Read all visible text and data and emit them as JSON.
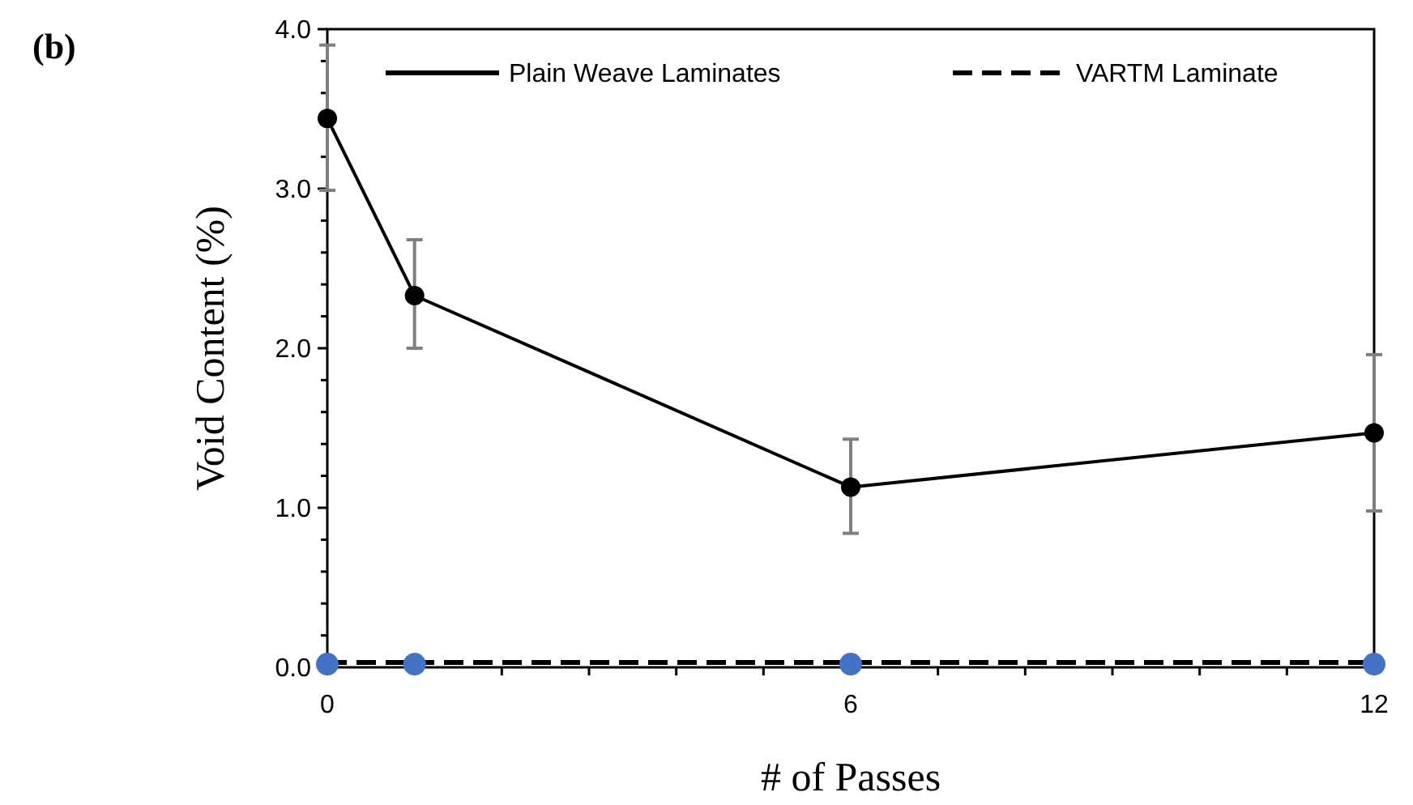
{
  "chart_data": {
    "type": "line",
    "xlabel": "# of Passes",
    "ylabel": "Void Content (%)",
    "annotations": [
      "(b)"
    ],
    "xlim": [
      0,
      12
    ],
    "ylim": [
      0,
      4
    ],
    "xticks": [
      0,
      {
        "value": 1,
        "label": null
      },
      {
        "value": 2,
        "label": null
      },
      {
        "value": 3,
        "label": null
      },
      {
        "value": 4,
        "label": null
      },
      {
        "value": 5,
        "label": null
      },
      6,
      {
        "value": 7,
        "label": null
      },
      {
        "value": 8,
        "label": null
      },
      {
        "value": 9,
        "label": null
      },
      {
        "value": 10,
        "label": null
      },
      {
        "value": 11,
        "label": null
      },
      12
    ],
    "yticks": [
      {
        "value": 0,
        "label": "0.0"
      },
      {
        "value": 0.2,
        "label": null
      },
      {
        "value": 0.4,
        "label": null
      },
      {
        "value": 0.6,
        "label": null
      },
      {
        "value": 0.8,
        "label": null
      },
      {
        "value": 1,
        "label": "1.0"
      },
      {
        "value": 1.2,
        "label": null
      },
      {
        "value": 1.4,
        "label": null
      },
      {
        "value": 1.6,
        "label": null
      },
      {
        "value": 1.8,
        "label": null
      },
      {
        "value": 2,
        "label": "2.0"
      },
      {
        "value": 2.2,
        "label": null
      },
      {
        "value": 2.4,
        "label": null
      },
      {
        "value": 2.6,
        "label": null
      },
      {
        "value": 2.8,
        "label": null
      },
      {
        "value": 3,
        "label": "3.0"
      },
      {
        "value": 3.2,
        "label": null
      },
      {
        "value": 3.4,
        "label": null
      },
      {
        "value": 3.6,
        "label": null
      },
      {
        "value": 3.8,
        "label": null
      },
      {
        "value": 4,
        "label": "4.0"
      }
    ],
    "grid": false,
    "legend": "top",
    "series": [
      {
        "name": "Plain Weave Laminates",
        "color": "#000000",
        "x": [
          0,
          1,
          6,
          12
        ],
        "values": [
          3.44,
          2.33,
          1.13,
          1.47
        ],
        "errors": [
          [
            2.99,
            3.9
          ],
          [
            2.0,
            2.68
          ],
          [
            0.84,
            1.43
          ],
          [
            0.98,
            1.96
          ]
        ],
        "marker": "circle",
        "line_style": "solid"
      },
      {
        "name": "VARTM Laminate",
        "color": "#000000",
        "x": [
          0,
          12
        ],
        "values": [
          0.03,
          0.03
        ],
        "marker": "none",
        "line_style": "dashed"
      },
      {
        "type": "scatter",
        "color": "#4472c4",
        "x": [
          0,
          1,
          6,
          12
        ],
        "values": [
          0.02,
          0.02,
          0.02,
          0.02
        ],
        "marker": "circle"
      }
    ]
  }
}
